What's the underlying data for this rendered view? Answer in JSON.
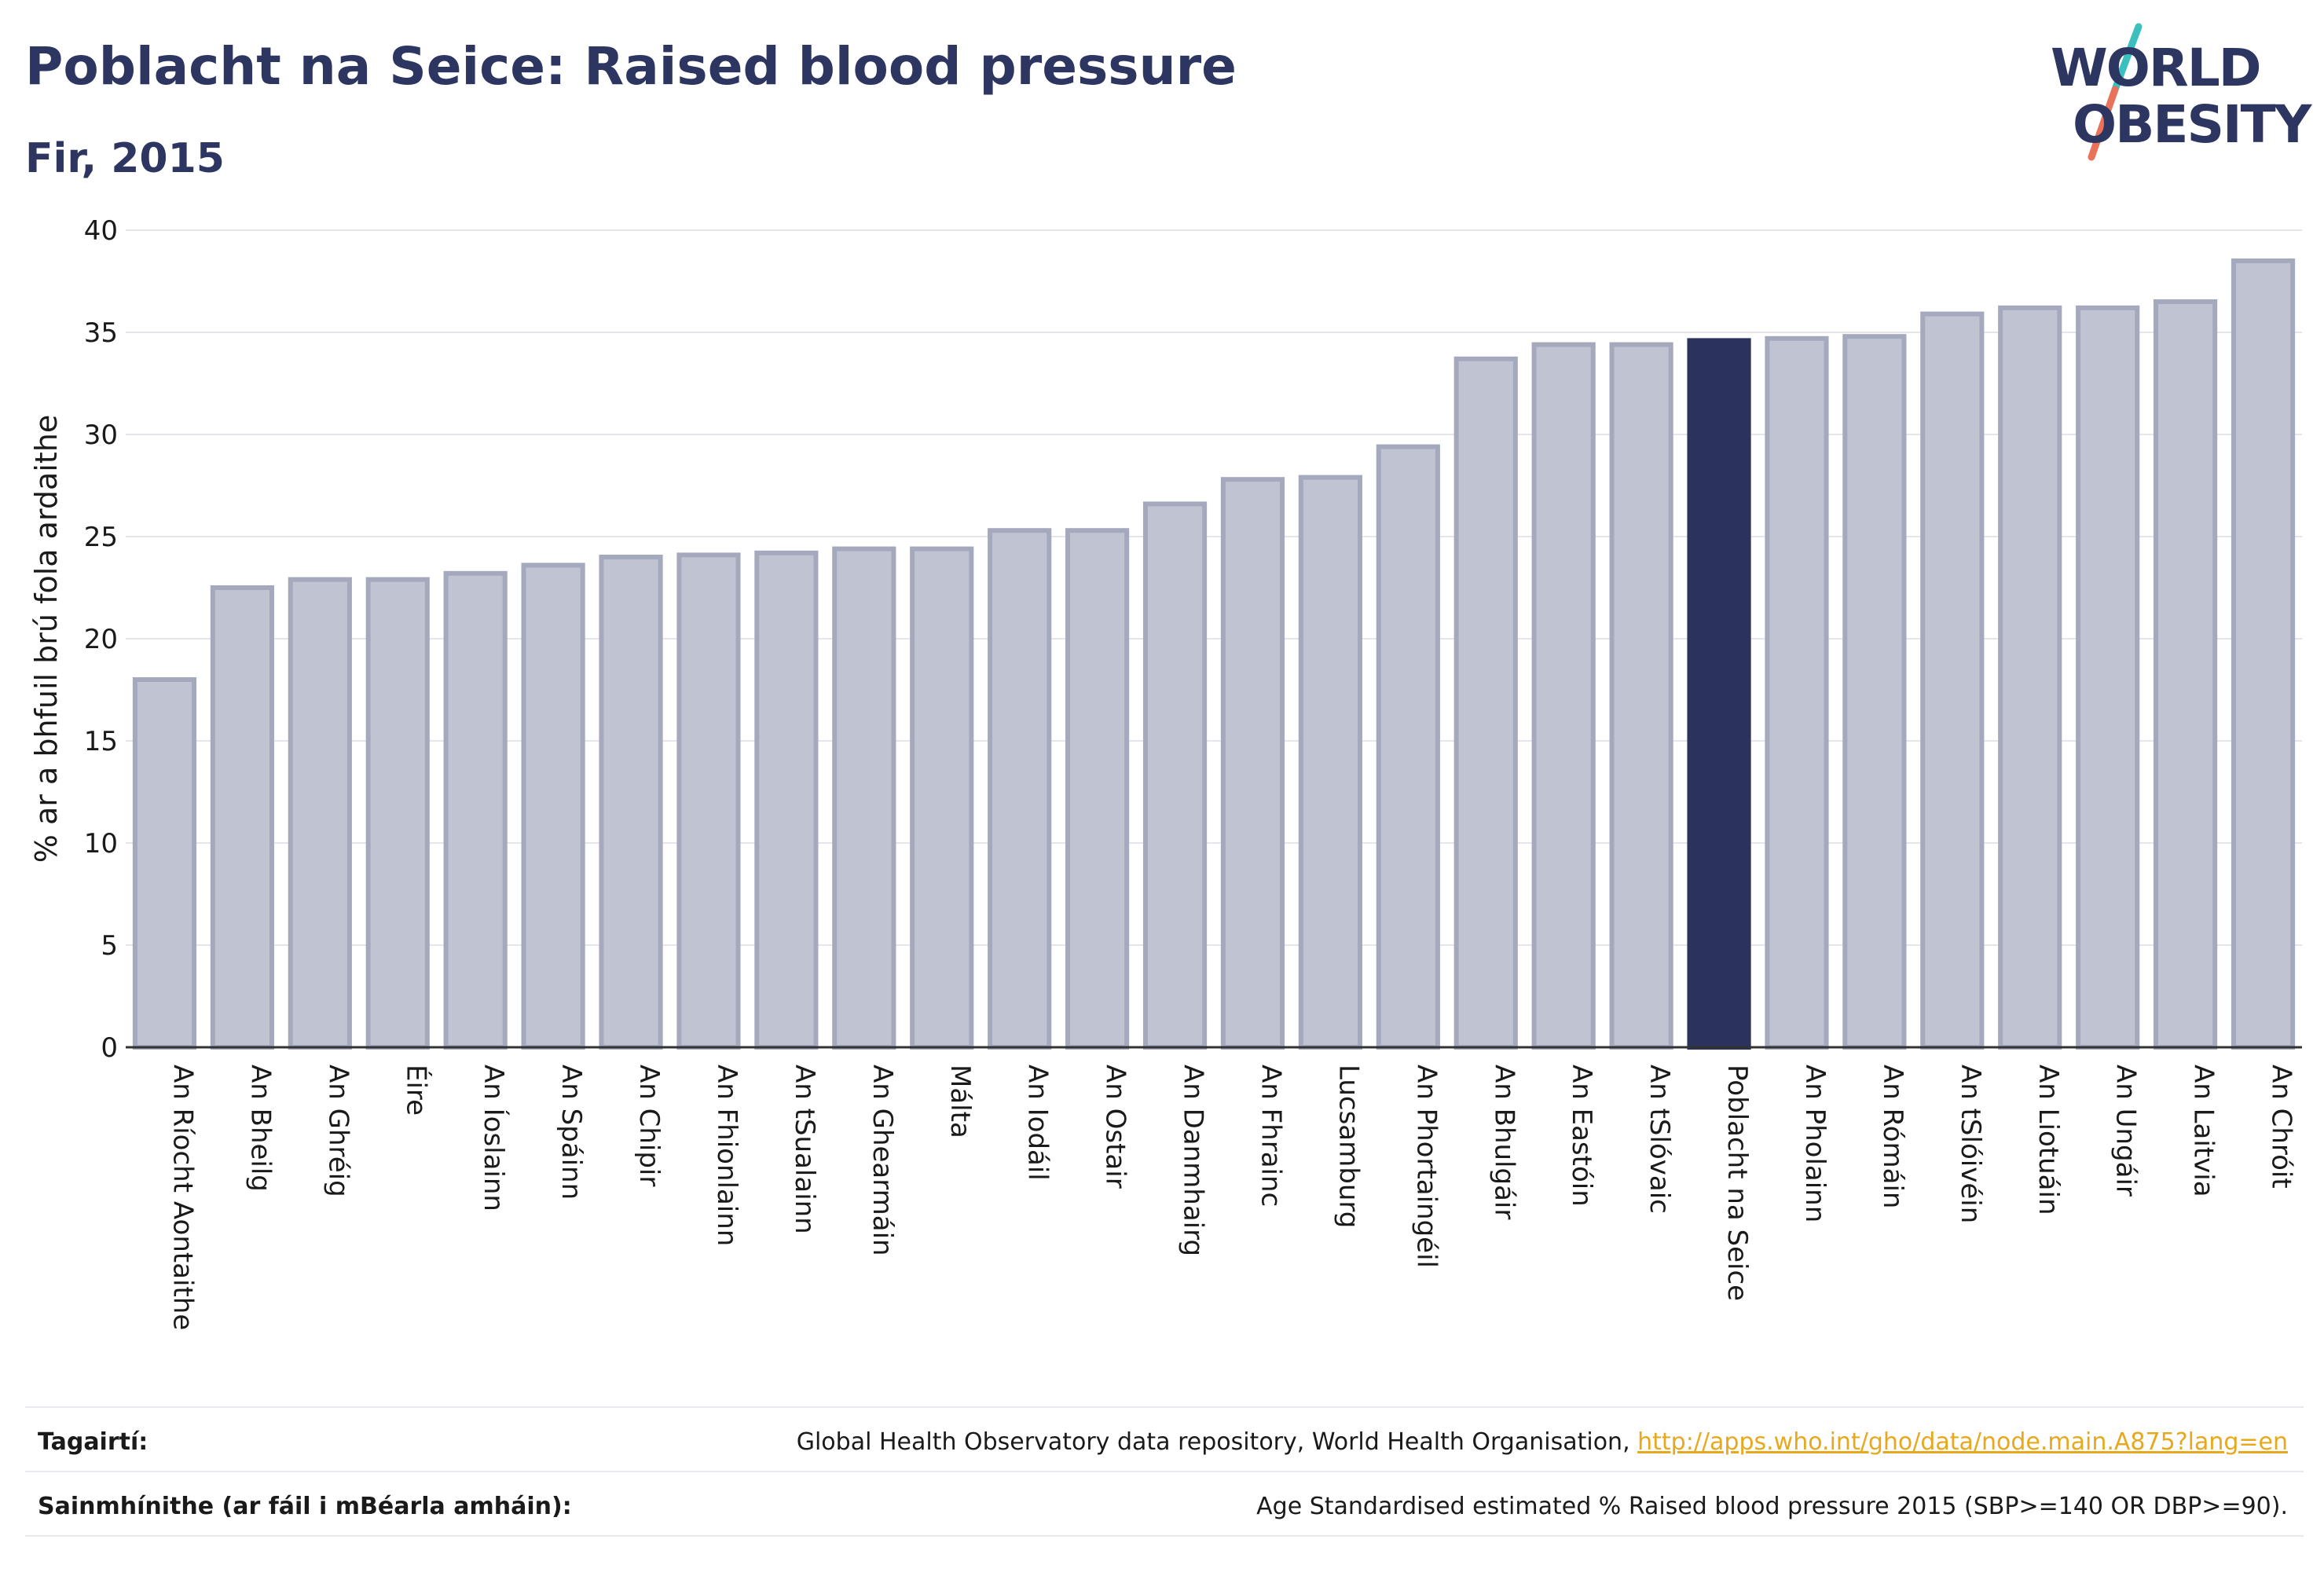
{
  "header": {
    "title": "Poblacht na Seice: Raised blood pressure",
    "subtitle": "Fir, 2015"
  },
  "logo": {
    "line1": "WORLD",
    "line2": "OBESITY",
    "slash_color_top": "#3bbfbf",
    "slash_color_bottom": "#e8735a"
  },
  "colors": {
    "bar_fill": "#c0c3d1",
    "bar_stroke": "#a5a9be",
    "highlight": "#2b335c",
    "grid": "#e6e6ea",
    "text": "#1a1a1a"
  },
  "chart_data": {
    "type": "bar",
    "ylabel": "% ar a bhfuil brú fola ardaithe",
    "ylim": [
      0,
      40
    ],
    "yticks": [
      0,
      5,
      10,
      15,
      20,
      25,
      30,
      35,
      40
    ],
    "grid": true,
    "highlight": "Poblacht na Seice",
    "categories": [
      "An Ríocht Aontaithe",
      "An Bheilg",
      "An Ghréig",
      "Éire",
      "An Íoslainn",
      "An Spáinn",
      "An Chipir",
      "An Fhionlainn",
      "An tSualainn",
      "An Ghearmáin",
      "Málta",
      "An Iodáil",
      "An Ostair",
      "An Danmhairg",
      "An Fhrainc",
      "Lucsamburg",
      "An Phortaingéil",
      "An Bhulgáir",
      "An Eastóin",
      "An tSlóvaic",
      "Poblacht na Seice",
      "An Pholainn",
      "An Rómáin",
      "An tSlóivéin",
      "An Liotuáin",
      "An Ungáir",
      "An Laitvia",
      "An Chróit"
    ],
    "values": [
      18.0,
      22.5,
      22.9,
      22.9,
      23.2,
      23.6,
      24.0,
      24.1,
      24.2,
      24.4,
      24.4,
      25.3,
      25.3,
      26.6,
      27.8,
      27.9,
      29.4,
      33.7,
      34.4,
      34.4,
      34.6,
      34.7,
      34.8,
      35.9,
      36.2,
      36.2,
      36.5,
      38.5
    ]
  },
  "footer": {
    "references_label": "Tagairtí:",
    "references_text": "Global Health Observatory data repository, World Health Organisation, ",
    "references_link": "http://apps.who.int/gho/data/node.main.A875?lang=en",
    "definitions_label": "Sainmhínithe (ar fáil i mBéarla amháin):",
    "definitions_text": "Age Standardised estimated % Raised blood pressure 2015 (SBP>=140 OR DBP>=90)."
  }
}
